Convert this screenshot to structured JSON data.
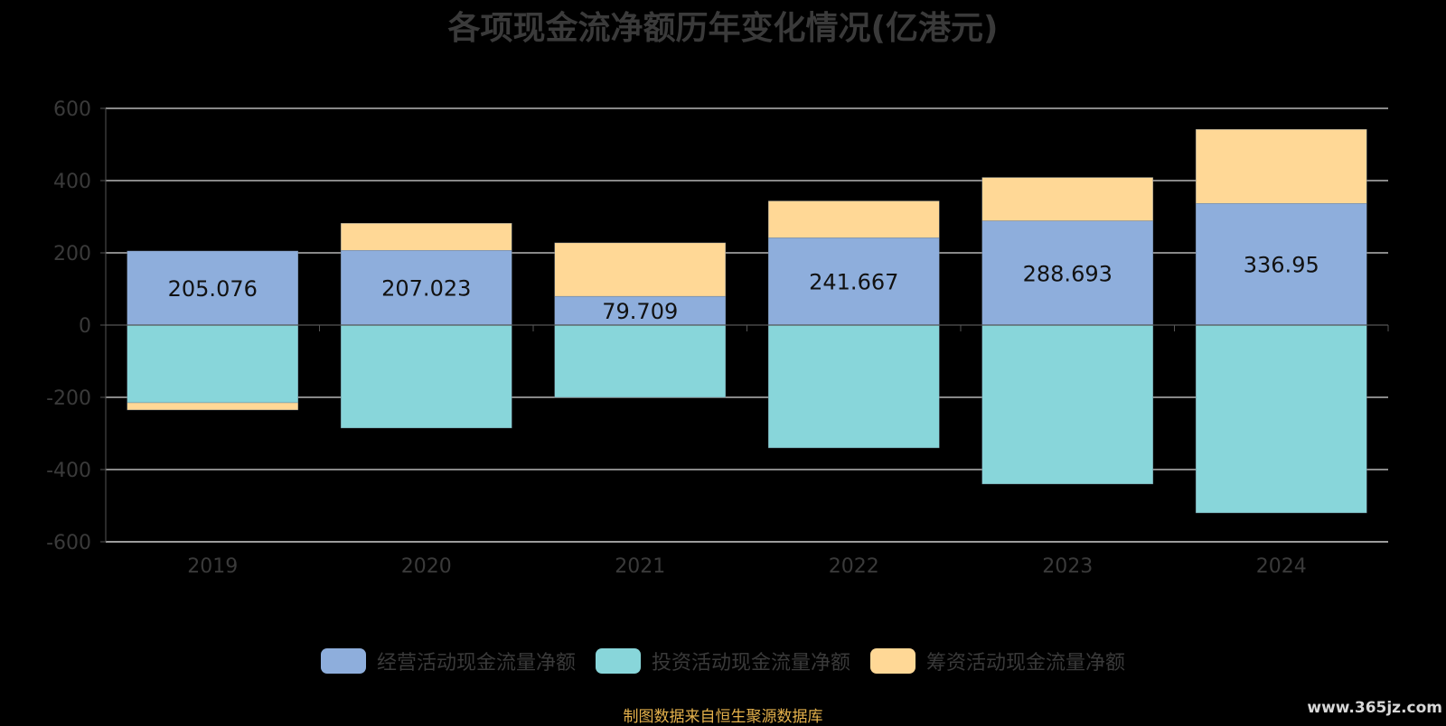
{
  "chart_data": {
    "type": "bar",
    "stacked": true,
    "title": "各项现金流净额历年变化情况(亿港元)",
    "categories": [
      "2019",
      "2020",
      "2021",
      "2022",
      "2023",
      "2024"
    ],
    "ylim": [
      -600,
      600
    ],
    "yticks": [
      600,
      400,
      200,
      0,
      -200,
      -400,
      -600
    ],
    "grid": true,
    "legend_position": "bottom",
    "series": [
      {
        "name": "经营活动现金流量净额",
        "color": "#8eaedc",
        "values": [
          205.076,
          207.023,
          79.709,
          241.667,
          288.693,
          336.95
        ],
        "data_labels": [
          "205.076",
          "207.023",
          "79.709",
          "241.667",
          "288.693",
          "336.95"
        ]
      },
      {
        "name": "投资活动现金流量净额",
        "color": "#88d6da",
        "values": [
          -215,
          -285,
          -200,
          -340,
          -440,
          -520
        ]
      },
      {
        "name": "筹资活动现金流量净额",
        "color": "#ffd896",
        "values": [
          -20,
          75,
          148,
          102,
          120,
          205
        ]
      }
    ]
  },
  "source_note": "制图数据来自恒生聚源数据库",
  "watermark": "www.365jz.com"
}
